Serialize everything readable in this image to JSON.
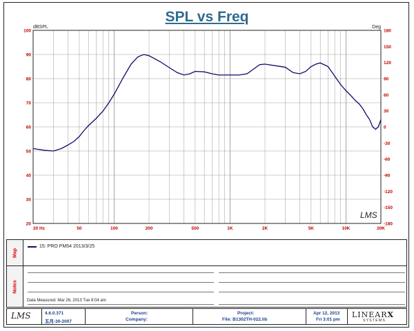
{
  "chart_data": {
    "type": "line",
    "title": "SPL vs Freq",
    "y_left_label": "dBSPL",
    "y_right_label": "Deg",
    "x_scale": "log",
    "xlim": [
      20,
      20000
    ],
    "ylim": [
      20,
      100
    ],
    "y2lim": [
      -180,
      180
    ],
    "y_ticks": [
      100,
      90,
      80,
      70,
      60,
      50,
      40,
      30,
      20
    ],
    "y2_ticks": [
      180,
      150,
      120,
      90,
      60,
      30,
      0,
      -30,
      -60,
      -90,
      -120,
      -150,
      -180
    ],
    "x_tick_labels": [
      {
        "value": 20,
        "label": "20  Hz"
      },
      {
        "value": 50,
        "label": "50"
      },
      {
        "value": 100,
        "label": "100"
      },
      {
        "value": 200,
        "label": "200"
      },
      {
        "value": 500,
        "label": "500"
      },
      {
        "value": 1000,
        "label": "1K"
      },
      {
        "value": 2000,
        "label": "2K"
      },
      {
        "value": 5000,
        "label": "5K"
      },
      {
        "value": 10000,
        "label": "10K"
      },
      {
        "value": 20000,
        "label": "20K"
      }
    ],
    "grid": true,
    "series": [
      {
        "name": "15: PRO PM54  2013/3/25",
        "color": "#0b0b6a",
        "points": [
          [
            20,
            51
          ],
          [
            25,
            50.3
          ],
          [
            30,
            50
          ],
          [
            35,
            51
          ],
          [
            40,
            52.5
          ],
          [
            45,
            54
          ],
          [
            50,
            56
          ],
          [
            55,
            58.5
          ],
          [
            60,
            60.5
          ],
          [
            70,
            63.5
          ],
          [
            80,
            66.5
          ],
          [
            90,
            70
          ],
          [
            100,
            73.5
          ],
          [
            120,
            80.5
          ],
          [
            140,
            86
          ],
          [
            160,
            89
          ],
          [
            180,
            90
          ],
          [
            200,
            89.5
          ],
          [
            250,
            87
          ],
          [
            300,
            84.5
          ],
          [
            350,
            82.5
          ],
          [
            400,
            81.5
          ],
          [
            450,
            82
          ],
          [
            500,
            83
          ],
          [
            600,
            82.8
          ],
          [
            700,
            82
          ],
          [
            800,
            81.5
          ],
          [
            900,
            81.5
          ],
          [
            1000,
            81.5
          ],
          [
            1200,
            81.5
          ],
          [
            1400,
            82
          ],
          [
            1600,
            84
          ],
          [
            1800,
            85.8
          ],
          [
            2000,
            86
          ],
          [
            2500,
            85.3
          ],
          [
            3000,
            84.7
          ],
          [
            3500,
            82.5
          ],
          [
            4000,
            82
          ],
          [
            4500,
            83
          ],
          [
            5000,
            85
          ],
          [
            5500,
            86
          ],
          [
            6000,
            86.5
          ],
          [
            7000,
            85
          ],
          [
            8000,
            81
          ],
          [
            9000,
            77.5
          ],
          [
            10000,
            75
          ],
          [
            11000,
            73
          ],
          [
            12000,
            71
          ],
          [
            13000,
            69.5
          ],
          [
            14000,
            67.5
          ],
          [
            15000,
            65
          ],
          [
            16000,
            63
          ],
          [
            17000,
            60
          ],
          [
            18000,
            59
          ],
          [
            19000,
            60
          ],
          [
            20000,
            63
          ]
        ]
      }
    ]
  },
  "watermark": "LMS",
  "sections": {
    "map_label": "Map",
    "notes_label": "Notes"
  },
  "legend": {
    "entry": "15: PRO PM54  2013/3/25"
  },
  "notes": {
    "data_measured": "Data Measured: Mar 26, 2013  Tue  8:04 am"
  },
  "footer": {
    "logo": "LMS",
    "version": "4.6.0.371",
    "version_date": "五月-30-2007",
    "person_label": "Person:",
    "company_label": "Company:",
    "project_label": "Project:",
    "file_label": "File: B1302TH-022.lib",
    "date": "Apr 12, 2013",
    "time": "Fri  3:01 pm",
    "brand": "LINEAR",
    "brand_x": "X",
    "brand_sub": "S Y S T E M S"
  },
  "colors": {
    "curve": "#0b0b6a",
    "title": "#2f6a8f",
    "tick_labels": "#c00000",
    "grid": "#999999"
  }
}
